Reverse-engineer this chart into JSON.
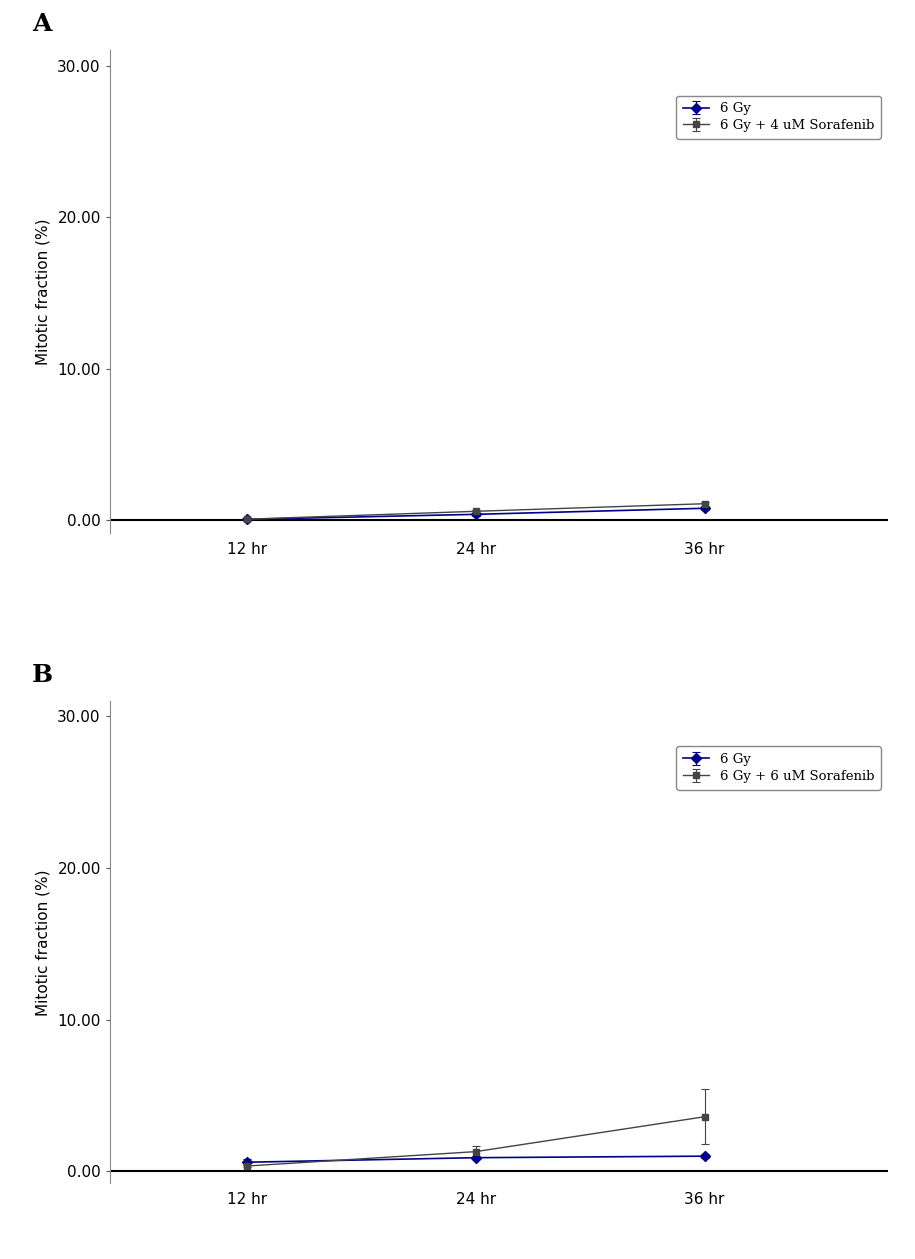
{
  "panel_A": {
    "title": "A",
    "x_labels": [
      "12 hr",
      "24 hr",
      "36 hr"
    ],
    "x_values": [
      0,
      1,
      2
    ],
    "series": [
      {
        "label": "6 Gy",
        "color": "#00008B",
        "marker": "D",
        "markersize": 5,
        "linestyle": "-",
        "linewidth": 1.2,
        "y": [
          0.07,
          0.4,
          0.8
        ],
        "yerr": [
          0.03,
          0.08,
          0.1
        ]
      },
      {
        "label": "6 Gy + 4 uM Sorafenib",
        "color": "#444444",
        "marker": "s",
        "markersize": 5,
        "linestyle": "-",
        "linewidth": 1.0,
        "y": [
          0.08,
          0.6,
          1.1
        ],
        "yerr": [
          0.03,
          0.1,
          0.12
        ]
      }
    ],
    "ylim": [
      -0.8,
      31.0
    ],
    "yticks": [
      0.0,
      10.0,
      20.0,
      30.0
    ],
    "ytick_labels": [
      "0.00",
      "10.00",
      "20.00",
      "30.00"
    ],
    "ylabel": "Mitotic fraction (%)"
  },
  "panel_B": {
    "title": "B",
    "x_labels": [
      "12 hr",
      "24 hr",
      "36 hr"
    ],
    "x_values": [
      0,
      1,
      2
    ],
    "series": [
      {
        "label": "6 Gy",
        "color": "#00008B",
        "marker": "D",
        "markersize": 5,
        "linestyle": "-",
        "linewidth": 1.2,
        "y": [
          0.6,
          0.9,
          1.0
        ],
        "yerr": [
          0.2,
          0.1,
          0.15
        ]
      },
      {
        "label": "6 Gy + 6 uM Sorafenib",
        "color": "#444444",
        "marker": "s",
        "markersize": 5,
        "linestyle": "-",
        "linewidth": 1.0,
        "y": [
          0.35,
          1.3,
          3.6
        ],
        "yerr": [
          0.08,
          0.35,
          1.8
        ]
      }
    ],
    "ylim": [
      -0.8,
      31.0
    ],
    "yticks": [
      0.0,
      10.0,
      20.0,
      30.0
    ],
    "ytick_labels": [
      "0.00",
      "10.00",
      "20.00",
      "30.00"
    ],
    "ylabel": "Mitotic fraction (%)"
  },
  "background_color": "#ffffff",
  "figure_width": 9.15,
  "figure_height": 12.59,
  "dpi": 100
}
